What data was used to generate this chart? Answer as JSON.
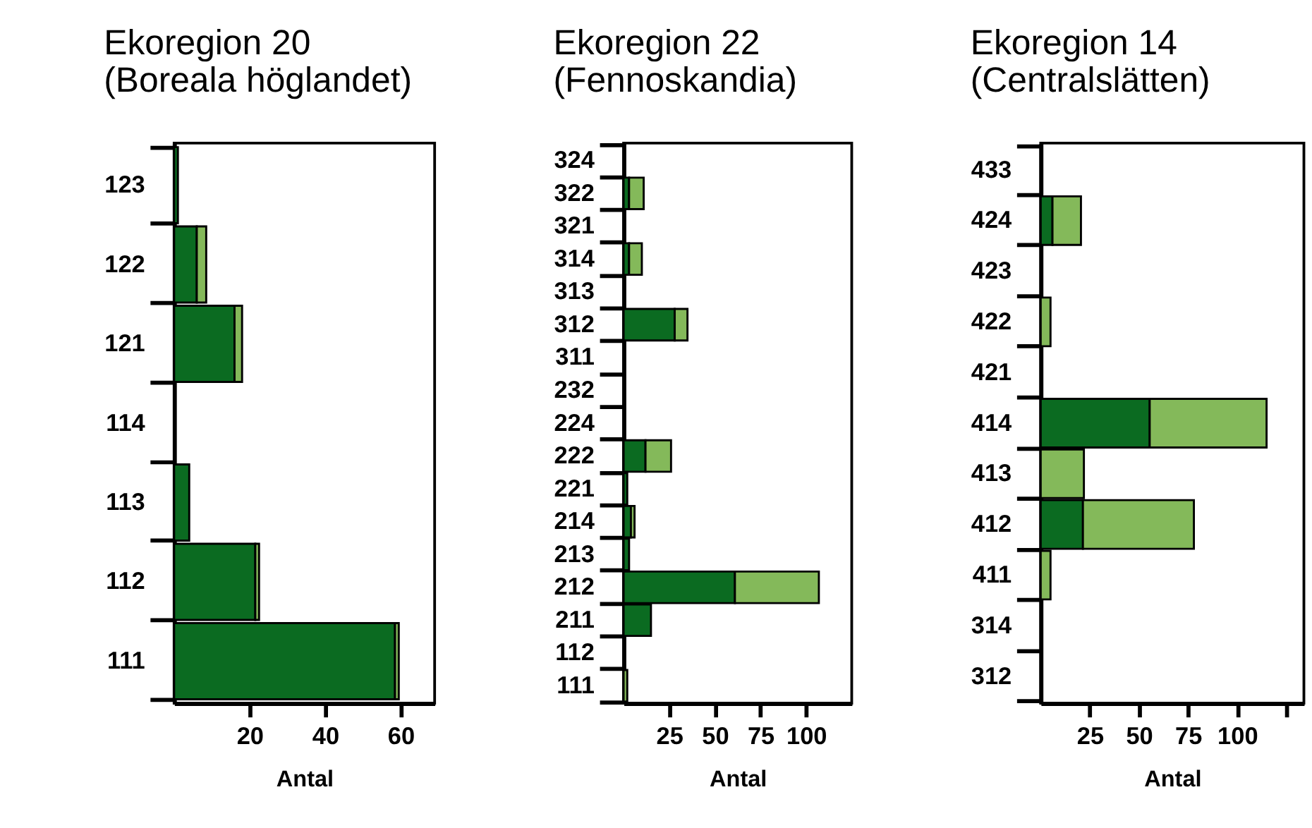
{
  "chart_data": [
    {
      "type": "bar",
      "orientation": "horizontal",
      "stacked": true,
      "title": "Ekoregion 20\n(Boreala höglandet)",
      "xlabel": "Antal",
      "categories": [
        "123",
        "122",
        "121",
        "114",
        "113",
        "112",
        "111"
      ],
      "series": [
        {
          "color": "#0b6b21",
          "values": [
            1,
            6,
            16,
            0,
            4,
            21.5,
            58.5
          ]
        },
        {
          "color": "#84b95a",
          "values": [
            0,
            2.5,
            2,
            0,
            0,
            1,
            1
          ]
        }
      ],
      "xlim": [
        0,
        69
      ],
      "xticks": [
        20,
        40,
        60
      ],
      "grid": false,
      "legend": false
    },
    {
      "type": "bar",
      "orientation": "horizontal",
      "stacked": true,
      "title": "Ekoregion 22\n(Fennoskandia)",
      "xlabel": "Antal",
      "categories": [
        "324",
        "322",
        "321",
        "314",
        "313",
        "312",
        "311",
        "232",
        "224",
        "222",
        "221",
        "214",
        "213",
        "212",
        "211",
        "112",
        "111"
      ],
      "series": [
        {
          "color": "#0b6b21",
          "values": [
            0,
            3,
            0,
            3,
            0,
            28,
            0,
            0,
            0,
            12,
            2,
            4,
            3,
            61,
            15,
            0,
            0
          ]
        },
        {
          "color": "#84b95a",
          "values": [
            0,
            8,
            0,
            7,
            0,
            7,
            0,
            0,
            0,
            14,
            0,
            2,
            0,
            46,
            0,
            0,
            2
          ]
        }
      ],
      "xlim": [
        0,
        125
      ],
      "xticks": [
        25,
        50,
        75,
        100
      ],
      "grid": false,
      "legend": false
    },
    {
      "type": "bar",
      "orientation": "horizontal",
      "stacked": true,
      "title": "Ekoregion 14\n(Centralslätten)",
      "xlabel": "Antal",
      "categories": [
        "433",
        "424",
        "423",
        "422",
        "421",
        "414",
        "413",
        "412",
        "411",
        "314",
        "312"
      ],
      "series": [
        {
          "color": "#0b6b21",
          "values": [
            0,
            6,
            0,
            0,
            0,
            55.5,
            0,
            21.5,
            0,
            0,
            0
          ]
        },
        {
          "color": "#84b95a",
          "values": [
            0,
            14.5,
            0,
            5,
            0,
            59.5,
            22,
            56.5,
            5,
            0,
            0
          ]
        }
      ],
      "xlim": [
        0,
        134
      ],
      "xticks": [
        25,
        50,
        75,
        100,
        {
          "value": 125,
          "label": null
        }
      ],
      "grid": false,
      "legend": false
    }
  ]
}
